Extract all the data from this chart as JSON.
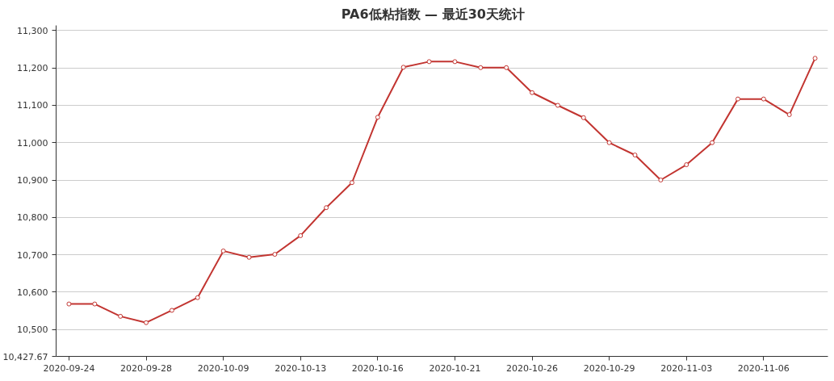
{
  "chart_data": {
    "type": "line",
    "title": "PA6低粘指数   —   最近30天统计",
    "categories": [
      "2020-09-24",
      null,
      null,
      "2020-09-28",
      null,
      null,
      "2020-10-09",
      null,
      null,
      "2020-10-13",
      null,
      null,
      "2020-10-16",
      null,
      null,
      "2020-10-21",
      null,
      null,
      "2020-10-26",
      null,
      null,
      "2020-10-29",
      null,
      null,
      "2020-11-03",
      null,
      null,
      "2020-11-06",
      null,
      null
    ],
    "series": [
      {
        "color": "#c23531",
        "values": [
          10568,
          10568,
          10535,
          10518,
          10551,
          10585,
          10710,
          10693,
          10701,
          10751,
          10826,
          10893,
          11068,
          11202,
          11217,
          11217,
          11201,
          11201,
          11134,
          11100,
          11067,
          11000,
          10967,
          10900,
          10941,
          11000,
          11117,
          11117,
          11075,
          11226
        ]
      }
    ],
    "ylim": [
      10427.67,
      11314
    ],
    "yticks": [
      {
        "value": 10427.67,
        "label": "10,427.67"
      },
      {
        "value": 10500,
        "label": "10,500"
      },
      {
        "value": 10600,
        "label": "10,600"
      },
      {
        "value": 10700,
        "label": "10,700"
      },
      {
        "value": 10800,
        "label": "10,800"
      },
      {
        "value": 10900,
        "label": "10,900"
      },
      {
        "value": 11000,
        "label": "11,000"
      },
      {
        "value": 11100,
        "label": "11,100"
      },
      {
        "value": 11200,
        "label": "11,200"
      },
      {
        "value": 11300,
        "label": "11,300"
      }
    ],
    "grid": "y",
    "marker": "circle",
    "line_style": "solid"
  }
}
